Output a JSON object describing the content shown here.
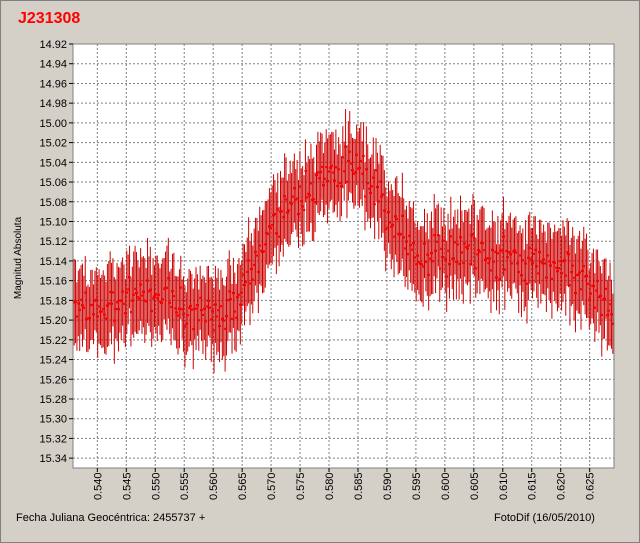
{
  "window": {
    "title": "J231308"
  },
  "footer": {
    "x_caption": "Fecha Juliana Geocéntrica: 2455737 +",
    "credit": "FotoDif (16/05/2010)"
  },
  "colors": {
    "background": "#d4d0c8",
    "plot_background": "#ffffff",
    "series": "#ff0000",
    "errorbar": "#cc0000",
    "grid": "#808080"
  },
  "chart_data": {
    "type": "scatter",
    "title": "J231308",
    "xlabel": "Fecha Juliana Geocéntrica: 2455737 +",
    "ylabel": "Magnitud Absoluta",
    "xlim": [
      0.5358,
      0.6292
    ],
    "ylim": [
      15.35,
      14.92
    ],
    "y_inverted": true,
    "grid": true,
    "error_bar_halfwidth": 0.04,
    "x_ticks": [
      "0.540",
      "0.545",
      "0.550",
      "0.555",
      "0.560",
      "0.565",
      "0.570",
      "0.575",
      "0.580",
      "0.585",
      "0.590",
      "0.595",
      "0.600",
      "0.605",
      "0.610",
      "0.615",
      "0.620",
      "0.625"
    ],
    "y_ticks": [
      "14.92",
      "14.94",
      "14.96",
      "14.98",
      "15.00",
      "15.02",
      "15.04",
      "15.06",
      "15.08",
      "15.10",
      "15.12",
      "15.14",
      "15.16",
      "15.18",
      "15.20",
      "15.22",
      "15.24",
      "15.26",
      "15.28",
      "15.30",
      "15.32",
      "15.34"
    ],
    "trend": [
      [
        0.536,
        15.18
      ],
      [
        0.54,
        15.19
      ],
      [
        0.545,
        15.18
      ],
      [
        0.55,
        15.17
      ],
      [
        0.553,
        15.18
      ],
      [
        0.556,
        15.19
      ],
      [
        0.56,
        15.2
      ],
      [
        0.563,
        15.19
      ],
      [
        0.566,
        15.16
      ],
      [
        0.569,
        15.12
      ],
      [
        0.572,
        15.08
      ],
      [
        0.576,
        15.07
      ],
      [
        0.58,
        15.055
      ],
      [
        0.583,
        15.05
      ],
      [
        0.585,
        15.04
      ],
      [
        0.587,
        15.06
      ],
      [
        0.59,
        15.09
      ],
      [
        0.593,
        15.12
      ],
      [
        0.596,
        15.14
      ],
      [
        0.6,
        15.13
      ],
      [
        0.605,
        15.13
      ],
      [
        0.61,
        15.14
      ],
      [
        0.615,
        15.14
      ],
      [
        0.62,
        15.14
      ],
      [
        0.624,
        15.16
      ],
      [
        0.627,
        15.18
      ],
      [
        0.629,
        15.2
      ]
    ],
    "n_points": 390,
    "scatter_amplitude": 0.014
  }
}
